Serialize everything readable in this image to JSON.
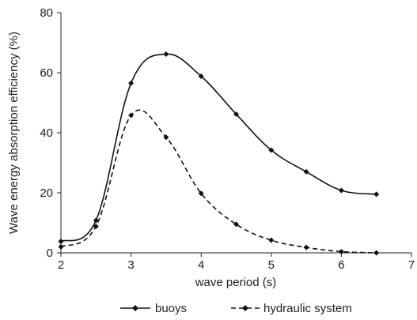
{
  "chart_data": {
    "type": "line",
    "xlabel": "wave period (s)",
    "ylabel": "Wave energy absorption efficiency (%)",
    "xlim": [
      2,
      7
    ],
    "ylim": [
      0,
      80
    ],
    "x_ticks": [
      "2",
      "3",
      "4",
      "5",
      "6",
      "7"
    ],
    "y_ticks": [
      "0",
      "20",
      "40",
      "60",
      "80"
    ],
    "legend_position": "bottom",
    "grid": false,
    "series": [
      {
        "name": "buoys",
        "style": "solid",
        "color": "#111111",
        "x": [
          2,
          2.5,
          3,
          3.5,
          4,
          4.5,
          5,
          5.5,
          6,
          6.5
        ],
        "values": [
          3.8,
          10.8,
          56.5,
          66.2,
          58.8,
          46.2,
          34.2,
          27.0,
          20.8,
          19.5
        ]
      },
      {
        "name": "hydraulic system",
        "style": "dashed",
        "color": "#111111",
        "x": [
          2,
          2.5,
          3,
          3.5,
          4,
          4.5,
          5,
          5.5,
          6,
          6.5
        ],
        "values": [
          2.0,
          8.8,
          45.8,
          38.5,
          19.8,
          9.5,
          4.2,
          1.8,
          0.4,
          0.0
        ]
      }
    ]
  }
}
